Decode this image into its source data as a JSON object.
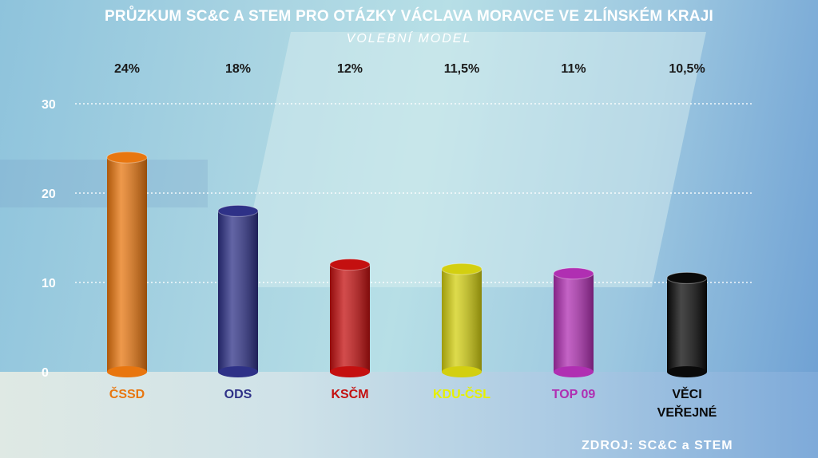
{
  "chart_data": {
    "type": "bar",
    "title": "PRŮZKUM SC&C A STEM PRO OTÁZKY VÁCLAVA MORAVCE VE ZLÍNSKÉM KRAJI",
    "subtitle": "VOLEBNÍ MODEL",
    "categories": [
      "ČSSD",
      "ODS",
      "KSČM",
      "KDU-ČSL",
      "TOP 09",
      "VĚCI VEŘEJNÉ"
    ],
    "values": [
      24,
      18,
      12,
      11.5,
      11,
      10.5
    ],
    "value_labels": [
      "24%",
      "18%",
      "12%",
      "11,5%",
      "11%",
      "10,5%"
    ],
    "colors": [
      "#e8760f",
      "#2e3187",
      "#c41010",
      "#d3cf10",
      "#b02fb2",
      "#0a0a0a"
    ],
    "label_colors": [
      "#e8760f",
      "#2e3187",
      "#c41010",
      "#e6f000",
      "#b02fb2",
      "#0a0a0a"
    ],
    "yticks": [
      0,
      10,
      20,
      30
    ],
    "ylim": [
      0,
      30
    ],
    "grid": true,
    "source": "ZDROJ: SC&C a STEM"
  }
}
